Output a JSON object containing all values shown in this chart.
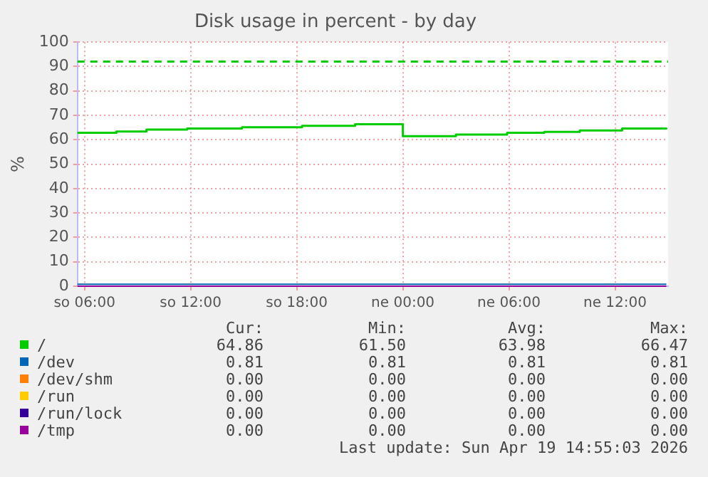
{
  "chart_data": {
    "type": "line",
    "title": "Disk usage in percent - by day",
    "ylabel": "%",
    "xlim": [
      "2026-04-18T05:36",
      "2026-04-19T15:00"
    ],
    "xticks": [
      {
        "value": "2026-04-18T06:00",
        "label": "so 06:00"
      },
      {
        "value": "2026-04-18T12:00",
        "label": "so 12:00"
      },
      {
        "value": "2026-04-18T18:00",
        "label": "so 18:00"
      },
      {
        "value": "2026-04-19T00:00",
        "label": "ne 00:00"
      },
      {
        "value": "2026-04-19T06:00",
        "label": "ne 06:00"
      },
      {
        "value": "2026-04-19T12:00",
        "label": "ne 12:00"
      }
    ],
    "ylim": [
      0,
      100
    ],
    "yticks": [
      0,
      10,
      20,
      30,
      40,
      50,
      60,
      70,
      80,
      90,
      100
    ],
    "grid": true,
    "legend": "bottom",
    "marker": "none",
    "line_style": "solid",
    "series": [
      {
        "name": "/",
        "color": "#00cc00",
        "type": "step",
        "x": [
          "2026-04-18T05:36",
          "2026-04-18T07:48",
          "2026-04-18T09:30",
          "2026-04-18T11:48",
          "2026-04-18T14:54",
          "2026-04-18T18:18",
          "2026-04-18T21:18",
          "2026-04-19T00:00",
          "2026-04-19T03:00",
          "2026-04-19T05:54",
          "2026-04-19T08:00",
          "2026-04-19T10:00",
          "2026-04-19T12:24",
          "2026-04-19T14:54"
        ],
        "values": [
          62.9,
          63.4,
          64.2,
          64.6,
          65.1,
          65.7,
          66.4,
          61.5,
          62.1,
          62.9,
          63.2,
          63.8,
          64.6,
          64.9
        ]
      },
      {
        "name": "/dev",
        "color": "#0066b3",
        "x": [
          "2026-04-18T05:36",
          "2026-04-19T14:54"
        ],
        "values": [
          0.8,
          0.8
        ]
      },
      {
        "name": "/dev/shm",
        "color": "#ff8000"
      },
      {
        "name": "/run",
        "color": "#ffcc00"
      },
      {
        "name": "/run/lock",
        "color": "#330099"
      },
      {
        "name": "/tmp",
        "color": "#990099",
        "x": [
          "2026-04-18T05:36",
          "2026-04-19T14:54"
        ],
        "values": [
          0,
          0
        ]
      }
    ],
    "ref_lines": [
      {
        "axis": "y",
        "value": 92,
        "label": null,
        "color": "#00cc00",
        "line_style": "dashed"
      }
    ],
    "annotations": [
      "Cur:",
      "Min:",
      "Avg:",
      "Max:",
      "64.86",
      "61.50",
      "63.98",
      "66.47",
      "0.81",
      "0.81",
      "0.81",
      "0.81",
      "0.00",
      "0.00",
      "0.00",
      "0.00",
      "0.00",
      "0.00",
      "0.00",
      "0.00",
      "0.00",
      "0.00",
      "0.00",
      "0.00",
      "0.00",
      "0.00",
      "0.00",
      "0.00",
      "Last update: Sun Apr 19 14:55:03 2026"
    ]
  }
}
